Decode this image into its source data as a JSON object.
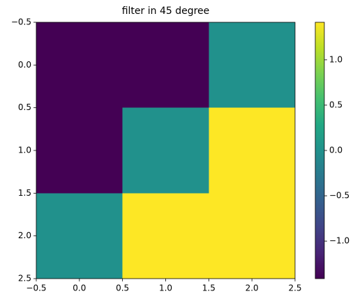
{
  "chart_data": {
    "type": "heatmap",
    "title": "filter in 45 degree",
    "z": [
      [
        -1.414,
        -1.414,
        0
      ],
      [
        -1.414,
        0,
        1.414
      ],
      [
        0,
        1.414,
        1.414
      ]
    ],
    "colormap": "viridis",
    "xlim": [
      -0.5,
      2.5
    ],
    "xticks": [
      {
        "value": -0.5,
        "label": "−0.5"
      },
      {
        "value": 0,
        "label": "0.0"
      },
      0.5,
      {
        "value": 1,
        "label": "1.0"
      },
      1.5,
      {
        "value": 2,
        "label": "2.0"
      },
      2.5
    ],
    "ylim": [
      2.5,
      -0.5
    ],
    "yticks": [
      {
        "value": -0.5,
        "label": "−0.5"
      },
      {
        "value": 0,
        "label": "0.0"
      },
      0.5,
      {
        "value": 1,
        "label": "1.0"
      },
      1.5,
      {
        "value": 2,
        "label": "2.0"
      },
      2.5
    ],
    "clim": [
      -1.414,
      1.414
    ],
    "cticks": [
      {
        "value": -1,
        "label": "−1.0"
      },
      {
        "value": -0.5,
        "label": "−0.5"
      },
      {
        "value": 0,
        "label": "0.0"
      },
      0.5,
      {
        "value": 1,
        "label": "1.0"
      }
    ]
  }
}
